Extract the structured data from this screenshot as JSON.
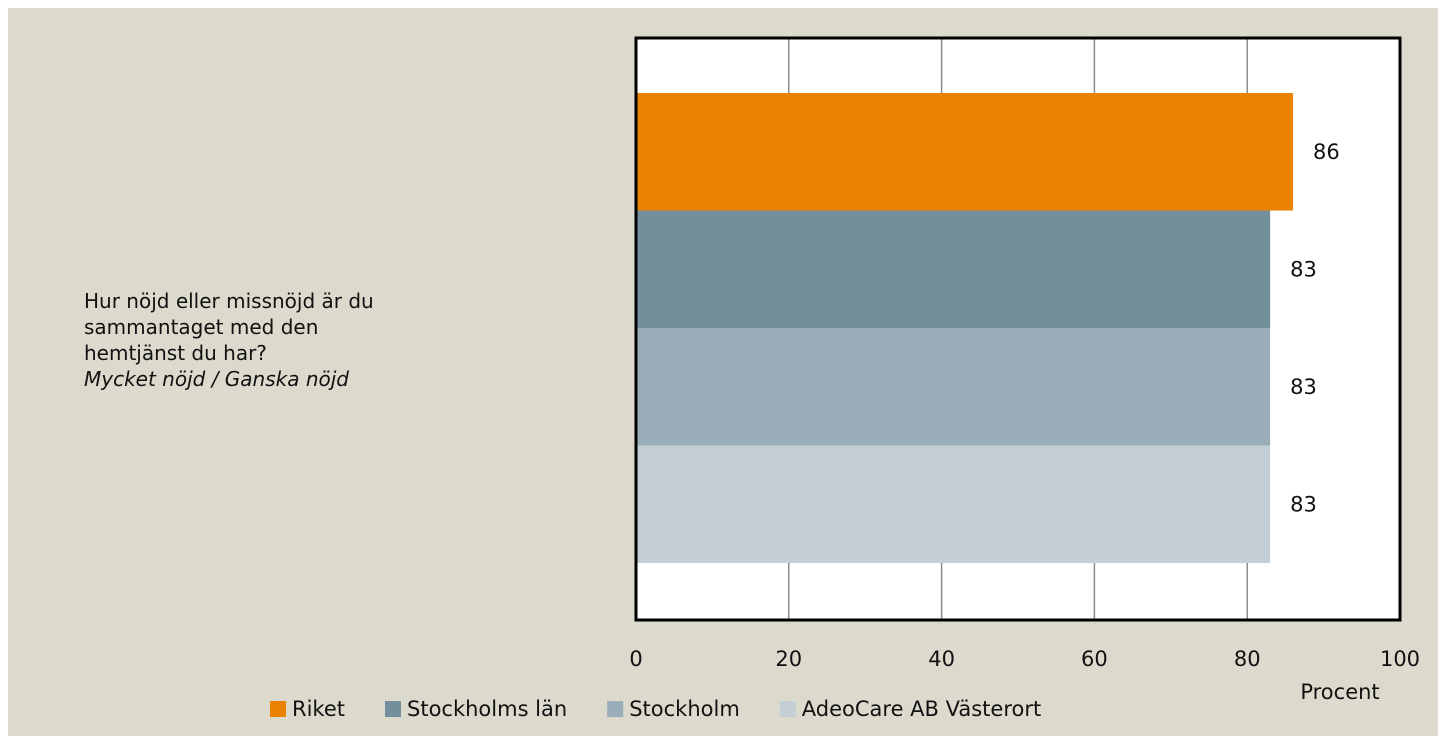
{
  "chart_data": {
    "type": "bar",
    "orientation": "horizontal",
    "categories": [
      "Hur nöjd eller missnöjd är du sammantaget med den hemtjänst du har?"
    ],
    "category_note": "Mycket nöjd / Ganska nöjd",
    "series": [
      {
        "name": "Riket",
        "color": "#ea8400",
        "values": [
          86
        ]
      },
      {
        "name": "Stockholms län",
        "color": "#738f9c",
        "values": [
          83
        ]
      },
      {
        "name": "Stockholm",
        "color": "#9aadb8",
        "values": [
          83
        ]
      },
      {
        "name": "AdeoCare AB Västerort",
        "color": "#c3ced5",
        "values": [
          83
        ]
      }
    ],
    "xlabel": "Procent",
    "xlim": [
      0,
      100
    ],
    "xticks": [
      0,
      20,
      40,
      60,
      80,
      100
    ],
    "grid": true,
    "legend": "bottom"
  }
}
